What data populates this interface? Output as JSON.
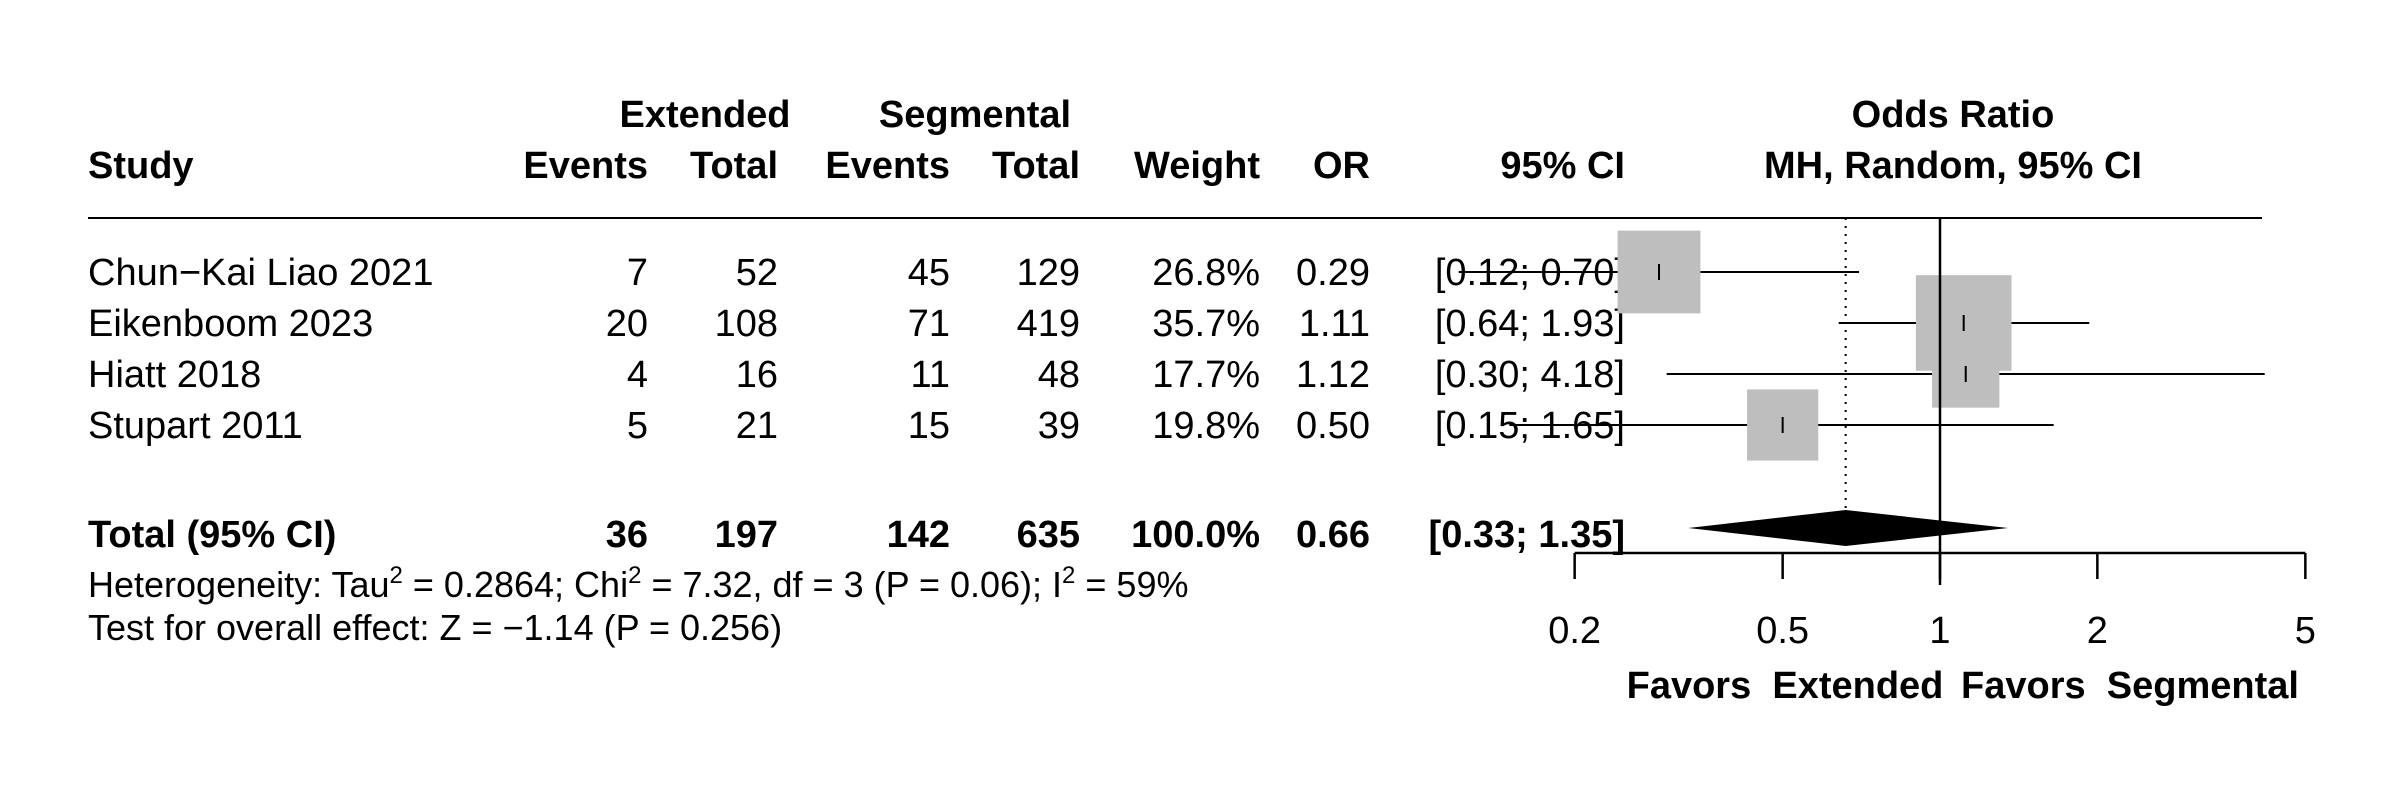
{
  "chart_data": {
    "type": "forest",
    "headers": {
      "group1": "Extended",
      "group2": "Segmental",
      "study": "Study",
      "events": "Events",
      "total": "Total",
      "weight": "Weight",
      "or": "OR",
      "ci": "95% CI",
      "plot_title": "Odds Ratio",
      "plot_subtitle": "MH, Random, 95% CI"
    },
    "studies": [
      {
        "name": "Chun−Kai Liao 2021",
        "e1": "7",
        "n1": "52",
        "e2": "45",
        "n2": "129",
        "weight": "26.8%",
        "or_text": "0.29",
        "ci_text": "[0.12; 0.70]",
        "or": 0.29,
        "lower": 0.12,
        "upper": 0.7,
        "w": 26.8
      },
      {
        "name": "Eikenboom 2023",
        "e1": "20",
        "n1": "108",
        "e2": "71",
        "n2": "419",
        "weight": "35.7%",
        "or_text": "1.11",
        "ci_text": "[0.64; 1.93]",
        "or": 1.11,
        "lower": 0.64,
        "upper": 1.93,
        "w": 35.7
      },
      {
        "name": "Hiatt 2018",
        "e1": "4",
        "n1": "16",
        "e2": "11",
        "n2": "48",
        "weight": "17.7%",
        "or_text": "1.12",
        "ci_text": "[0.30; 4.18]",
        "or": 1.12,
        "lower": 0.3,
        "upper": 4.18,
        "w": 17.7
      },
      {
        "name": "Stupart 2011",
        "e1": "5",
        "n1": "21",
        "e2": "15",
        "n2": "39",
        "weight": "19.8%",
        "or_text": "0.50",
        "ci_text": "[0.15; 1.65]",
        "or": 0.5,
        "lower": 0.15,
        "upper": 1.65,
        "w": 19.8
      }
    ],
    "total": {
      "name": "Total (95% CI)",
      "e1": "36",
      "n1": "197",
      "e2": "142",
      "n2": "635",
      "weight": "100.0%",
      "or_text": "0.66",
      "ci_text": "[0.33; 1.35]",
      "or": 0.66,
      "lower": 0.33,
      "upper": 1.35
    },
    "heterogeneity": {
      "prefix": "Heterogeneity: Tau",
      "tau_sup": "2",
      "tau_value": " = 0.2864; Chi",
      "chi_sup": "2",
      "chi_value": " = 7.32, df = 3 (P = 0.06); I",
      "i_sup": "2",
      "i_value": " = 59%"
    },
    "overall_effect": "Test for overall effect: Z = −1.14 (P = 0.256)",
    "x_axis": {
      "scale": "log",
      "ticks": [
        0.2,
        0.5,
        1,
        2,
        5
      ],
      "tick_labels": [
        "0.2",
        "0.5",
        "1",
        "2",
        "5"
      ],
      "range": [
        0.2,
        5
      ]
    },
    "favors_left": "Favors  Extended",
    "favors_right": "Favors  Segmental",
    "reference_line": 1,
    "pooled_line": 0.66,
    "colors": {
      "box": "#bebebe",
      "diamond": "#000000",
      "line": "#000000"
    }
  }
}
